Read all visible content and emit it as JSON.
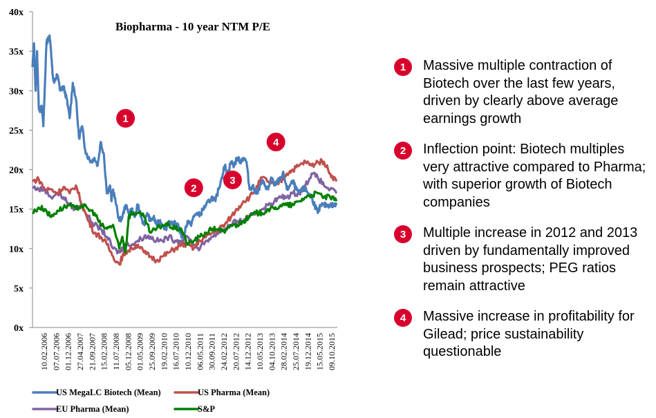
{
  "chart_data": {
    "type": "line",
    "title": "Biopharma - 10 year NTM P/E",
    "xlabel": "",
    "ylabel": "",
    "ylim": [
      0,
      40
    ],
    "xlim": [
      2006.0,
      2015.83
    ],
    "y_ticks": [
      "0x",
      "5x",
      "10x",
      "15x",
      "20x",
      "25x",
      "30x",
      "35x",
      "40x"
    ],
    "x_ticks": [
      "10.02.2006",
      "07.07.2006",
      "01.12.2006",
      "27.04.2007",
      "21.09.2007",
      "15.02.2008",
      "11.07.2008",
      "05.12.2008",
      "01.05.2009",
      "25.09.2009",
      "19.02.2010",
      "16.07.2010",
      "10.12.2010",
      "06.05.2011",
      "30.09.2011",
      "24.02.2012",
      "20.07.2012",
      "14.12.2012",
      "10.05.2013",
      "04.10.2013",
      "28.02.2014",
      "25.07.2014",
      "19.12.2014",
      "15.05.2015",
      "09.10.2015"
    ],
    "grid": false,
    "legend_position": "bottom",
    "series": [
      {
        "name": "US MegaLC Biotech (Mean)",
        "color": "#4a7ebb",
        "x": [
          2006.0,
          2006.05,
          2006.1,
          2006.15,
          2006.2,
          2006.25,
          2006.3,
          2006.35,
          2006.45,
          2006.55,
          2006.62,
          2006.65,
          2006.7,
          2006.75,
          2006.8,
          2006.9,
          2007.0,
          2007.1,
          2007.2,
          2007.3,
          2007.4,
          2007.5,
          2007.6,
          2007.7,
          2007.8,
          2007.9,
          2008.0,
          2008.1,
          2008.2,
          2008.3,
          2008.4,
          2008.5,
          2008.55,
          2008.6,
          2008.7,
          2008.8,
          2008.9,
          2009.0,
          2009.1,
          2009.2,
          2009.3,
          2009.4,
          2009.5,
          2009.6,
          2009.7,
          2009.8,
          2009.9,
          2010.0,
          2010.1,
          2010.2,
          2010.3,
          2010.4,
          2010.5,
          2010.6,
          2010.7,
          2010.8,
          2010.9,
          2011.0,
          2011.1,
          2011.2,
          2011.3,
          2011.4,
          2011.5,
          2011.6,
          2011.7,
          2011.8,
          2011.9,
          2012.0,
          2012.1,
          2012.2,
          2012.3,
          2012.4,
          2012.5,
          2012.6,
          2012.7,
          2012.8,
          2012.9,
          2013.0,
          2013.1,
          2013.2,
          2013.3,
          2013.4,
          2013.5,
          2013.6,
          2013.7,
          2013.8,
          2013.9,
          2014.0,
          2014.1,
          2014.2,
          2014.3,
          2014.4,
          2014.5,
          2014.6,
          2014.7,
          2014.8,
          2014.9,
          2015.0,
          2015.1,
          2015.2,
          2015.3,
          2015.4,
          2015.5,
          2015.6,
          2015.7,
          2015.8
        ],
        "values": [
          33,
          36,
          30,
          35,
          28,
          27.5,
          28,
          25.5,
          36,
          37,
          34,
          32,
          31,
          31.5,
          32,
          30,
          30.5,
          29,
          26.5,
          31,
          29,
          24,
          25.5,
          22.5,
          21.5,
          21,
          21.5,
          20.5,
          23.5,
          22,
          17,
          18,
          16,
          17.5,
          15.5,
          13.5,
          14,
          15.5,
          14.5,
          15,
          14,
          15.5,
          14,
          13,
          14.5,
          13.5,
          14,
          13,
          13.5,
          13,
          12.5,
          13.5,
          13,
          13.2,
          13,
          11.5,
          12,
          13.5,
          13,
          14,
          14.5,
          14.2,
          15,
          15.5,
          16,
          16.5,
          16,
          17.5,
          19,
          20.5,
          19.5,
          21,
          20.5,
          21.5,
          21,
          21.5,
          21,
          17.5,
          18,
          17,
          17.5,
          18.5,
          18,
          17.5,
          19,
          18,
          18.5,
          19,
          19.5,
          17.5,
          18,
          18.5,
          17.5,
          17,
          17.5,
          17.5,
          17,
          16.5,
          15.5,
          14.5,
          15.5,
          15.5,
          15.5,
          15.5,
          15.5,
          15.5
        ],
        "note": "values approximate, read from chart"
      },
      {
        "name": "US Pharma (Mean)",
        "color": "#c0504d",
        "x": [
          2006.0,
          2006.2,
          2006.4,
          2006.6,
          2006.8,
          2007.0,
          2007.2,
          2007.4,
          2007.6,
          2007.8,
          2008.0,
          2008.2,
          2008.4,
          2008.6,
          2008.8,
          2008.9,
          2009.0,
          2009.2,
          2009.4,
          2009.6,
          2009.8,
          2010.0,
          2010.2,
          2010.4,
          2010.6,
          2010.8,
          2011.0,
          2011.2,
          2011.4,
          2011.6,
          2011.8,
          2012.0,
          2012.2,
          2012.4,
          2012.6,
          2012.8,
          2013.0,
          2013.2,
          2013.4,
          2013.6,
          2013.8,
          2014.0,
          2014.2,
          2014.4,
          2014.6,
          2014.8,
          2015.0,
          2015.2,
          2015.4,
          2015.6,
          2015.8
        ],
        "values": [
          18.5,
          18.8,
          17.5,
          17.5,
          17.0,
          17.8,
          17.0,
          18.0,
          15.5,
          13.5,
          12.0,
          11.5,
          10.5,
          9.0,
          8.0,
          9.0,
          9.5,
          10.0,
          10.5,
          9.5,
          9.0,
          8.5,
          9.0,
          9.5,
          10.0,
          10.5,
          10.5,
          10.0,
          11.0,
          11.5,
          12.0,
          12.5,
          13.0,
          14.0,
          15.0,
          16.0,
          16.5,
          17.5,
          19.0,
          18.5,
          18.0,
          18.5,
          19.5,
          20.0,
          20.5,
          21.0,
          20.5,
          21.0,
          21.0,
          19.5,
          18.5
        ]
      },
      {
        "name": "EU Pharma (Mean)",
        "color": "#8064a2",
        "x": [
          2006.0,
          2006.2,
          2006.4,
          2006.6,
          2006.8,
          2007.0,
          2007.2,
          2007.4,
          2007.6,
          2007.8,
          2008.0,
          2008.2,
          2008.4,
          2008.6,
          2008.8,
          2008.9,
          2009.0,
          2009.2,
          2009.4,
          2009.6,
          2009.8,
          2010.0,
          2010.2,
          2010.4,
          2010.6,
          2010.8,
          2011.0,
          2011.2,
          2011.4,
          2011.6,
          2011.8,
          2012.0,
          2012.2,
          2012.4,
          2012.6,
          2012.8,
          2013.0,
          2013.2,
          2013.4,
          2013.6,
          2013.8,
          2014.0,
          2014.2,
          2014.4,
          2014.6,
          2014.8,
          2015.0,
          2015.2,
          2015.4,
          2015.6,
          2015.8
        ],
        "values": [
          17.8,
          17.5,
          17.5,
          16.5,
          17.0,
          16.5,
          15.5,
          15.0,
          15.5,
          14.0,
          13.0,
          12.5,
          11.5,
          10.0,
          9.5,
          10.0,
          10.5,
          10.5,
          11.0,
          11.5,
          11.5,
          11.0,
          11.0,
          11.5,
          11.0,
          11.0,
          11.5,
          10.5,
          10.0,
          11.0,
          11.5,
          12.0,
          12.5,
          13.0,
          13.5,
          13.5,
          14.0,
          14.5,
          15.0,
          15.5,
          16.0,
          16.5,
          16.5,
          17.0,
          17.0,
          18.0,
          19.5,
          19.0,
          18.0,
          17.5,
          17.0
        ]
      },
      {
        "name": "S&P",
        "color": "#008000",
        "x": [
          2006.0,
          2006.2,
          2006.4,
          2006.6,
          2006.8,
          2007.0,
          2007.2,
          2007.4,
          2007.6,
          2007.8,
          2008.0,
          2008.2,
          2008.4,
          2008.6,
          2008.8,
          2008.9,
          2009.0,
          2009.1,
          2009.2,
          2009.4,
          2009.6,
          2009.8,
          2010.0,
          2010.2,
          2010.4,
          2010.6,
          2010.8,
          2011.0,
          2011.2,
          2011.4,
          2011.6,
          2011.8,
          2012.0,
          2012.2,
          2012.4,
          2012.6,
          2012.8,
          2013.0,
          2013.2,
          2013.4,
          2013.6,
          2013.8,
          2014.0,
          2014.2,
          2014.4,
          2014.6,
          2014.8,
          2015.0,
          2015.2,
          2015.4,
          2015.6,
          2015.8
        ],
        "values": [
          14.5,
          15.2,
          15.0,
          14.0,
          14.8,
          15.2,
          15.5,
          15.0,
          15.5,
          15.0,
          14.5,
          13.0,
          12.5,
          13.0,
          10.0,
          11.5,
          9.5,
          14.0,
          14.5,
          14.5,
          14.0,
          12.0,
          12.5,
          13.0,
          13.0,
          12.5,
          12.5,
          10.5,
          11.0,
          11.5,
          12.0,
          12.5,
          12.5,
          12.0,
          13.0,
          13.0,
          13.5,
          14.0,
          14.5,
          14.5,
          15.0,
          15.0,
          15.5,
          15.5,
          15.5,
          16.0,
          16.5,
          16.8,
          17.0,
          16.5,
          16.5,
          16.0
        ]
      }
    ],
    "annotations": [
      {
        "label": "1",
        "x": 2009.0,
        "y": 26.5
      },
      {
        "label": "2",
        "x": 2011.2,
        "y": 17.7
      },
      {
        "label": "3",
        "x": 2012.45,
        "y": 18.7
      },
      {
        "label": "4",
        "x": 2013.85,
        "y": 23.5
      }
    ]
  },
  "notes": [
    {
      "number": "1",
      "text": "Massive multiple contraction of Biotech over the last few years, driven by clearly above average earnings growth"
    },
    {
      "number": "2",
      "text": "Inflection point: Biotech multiples very attractive compared to Pharma; with superior growth of Biotech companies"
    },
    {
      "number": "3",
      "text": "Multiple increase in 2012 and 2013 driven by fundamentally improved business prospects; PEG ratios remain attractive"
    },
    {
      "number": "4",
      "text": "Massive increase in profitability for Gilead; price sustainability questionable"
    }
  ],
  "accent_color": "#d7002d"
}
